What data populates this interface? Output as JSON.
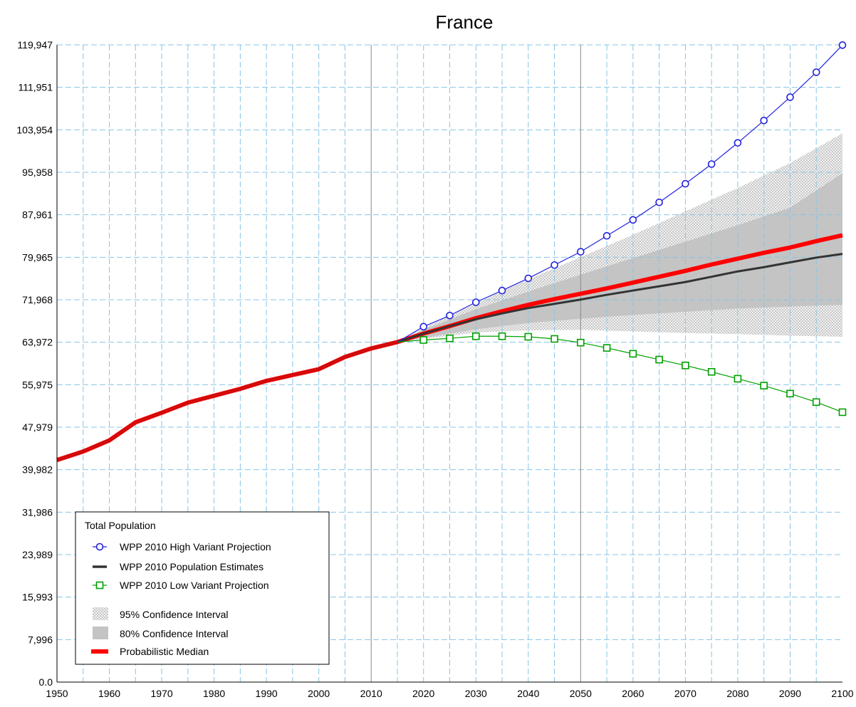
{
  "chart_data": {
    "type": "line",
    "title": "France",
    "xlabel": "",
    "ylabel": "",
    "xlim": [
      1950,
      2100
    ],
    "ylim": [
      0,
      119947
    ],
    "x_ticks": [
      1950,
      1960,
      1970,
      1980,
      1990,
      2000,
      2010,
      2020,
      2030,
      2040,
      2050,
      2060,
      2070,
      2080,
      2090,
      2100
    ],
    "x_tick_labels": [
      "1950",
      "1960",
      "1970",
      "1980",
      "1990",
      "2000",
      "2010",
      "2020",
      "2030",
      "2040",
      "2050",
      "2060",
      "2070",
      "2080",
      "2090",
      "2100"
    ],
    "y_ticks": [
      0,
      7996,
      15993,
      23989,
      31986,
      39982,
      47979,
      55975,
      63972,
      71968,
      79965,
      87961,
      95958,
      103954,
      111951,
      119947
    ],
    "y_tick_labels": [
      "0.0",
      "7,996",
      "15,993",
      "23,989",
      "31,986",
      "39,982",
      "47,979",
      "55,975",
      "63,972",
      "71,968",
      "79,965",
      "87,961",
      "95,958",
      "103,954",
      "111,951",
      "119,947"
    ],
    "grid": true,
    "reference_lines_x": [
      2010,
      2050
    ],
    "legend": {
      "title": "Total Population",
      "placement": "bottom-left",
      "entries": [
        {
          "key": "high",
          "label": "WPP 2010 High Variant Projection"
        },
        {
          "key": "estimates",
          "label": "WPP 2010 Population Estimates"
        },
        {
          "key": "low",
          "label": "WPP 2010 Low Variant Projection"
        },
        {
          "key": "ci95",
          "label": "95% Confidence Interval"
        },
        {
          "key": "ci80",
          "label": "80% Confidence Interval"
        },
        {
          "key": "median",
          "label": "Probabilistic Median"
        }
      ]
    },
    "colors": {
      "high": "#2222dd",
      "estimates": "#333333",
      "low": "#00a000",
      "median": "#ff0000",
      "ci95": "#d8d8d8",
      "ci80": "#c4c4c4",
      "grid": "#88c4e4",
      "reference": "#888888"
    },
    "series": [
      {
        "key": "median",
        "name": "Probabilistic Median",
        "x": [
          1950,
          1955,
          1960,
          1965,
          1970,
          1975,
          1980,
          1985,
          1990,
          1995,
          2000,
          2005,
          2010,
          2015,
          2020,
          2025,
          2030,
          2035,
          2040,
          2045,
          2050,
          2055,
          2060,
          2065,
          2070,
          2075,
          2080,
          2085,
          2090,
          2095,
          2100
        ],
        "values": [
          41800,
          43400,
          45500,
          48900,
          50700,
          52600,
          53900,
          55200,
          56700,
          57800,
          58900,
          61200,
          62800,
          64000,
          65600,
          67000,
          68500,
          69800,
          71000,
          72100,
          73100,
          74100,
          75200,
          76300,
          77400,
          78600,
          79700,
          80800,
          81800,
          83000,
          84100
        ]
      },
      {
        "key": "estimates",
        "name": "WPP 2010 Population Estimates",
        "x": [
          1950,
          1955,
          1960,
          1965,
          1970,
          1975,
          1980,
          1985,
          1990,
          1995,
          2000,
          2005,
          2010,
          2015,
          2020,
          2025,
          2030,
          2035,
          2040,
          2045,
          2050,
          2055,
          2060,
          2065,
          2070,
          2075,
          2080,
          2085,
          2090,
          2095,
          2100
        ],
        "values": [
          41800,
          43400,
          45500,
          48900,
          50700,
          52600,
          53900,
          55200,
          56700,
          57800,
          58900,
          61200,
          62800,
          64000,
          65600,
          67000,
          68300,
          69400,
          70400,
          71200,
          72000,
          72900,
          73700,
          74500,
          75300,
          76300,
          77300,
          78100,
          79000,
          79900,
          80600
        ]
      },
      {
        "key": "high",
        "name": "WPP 2010 High Variant Projection",
        "x": [
          2020,
          2025,
          2030,
          2035,
          2040,
          2045,
          2050,
          2055,
          2060,
          2065,
          2070,
          2075,
          2080,
          2085,
          2090,
          2095,
          2100
        ],
        "values": [
          66900,
          69000,
          71500,
          73700,
          76000,
          78500,
          81000,
          84000,
          87000,
          90300,
          93800,
          97500,
          101500,
          105700,
          110100,
          114800,
          119900
        ]
      },
      {
        "key": "low",
        "name": "WPP 2010 Low Variant Projection",
        "x": [
          2020,
          2025,
          2030,
          2035,
          2040,
          2045,
          2050,
          2055,
          2060,
          2065,
          2070,
          2075,
          2080,
          2085,
          2090,
          2095,
          2100
        ],
        "values": [
          64400,
          64700,
          65100,
          65100,
          65000,
          64600,
          63900,
          62900,
          61800,
          60700,
          59600,
          58400,
          57100,
          55800,
          54300,
          52700,
          50800
        ]
      }
    ],
    "bands": [
      {
        "key": "ci95",
        "name": "95% Confidence Interval",
        "x": [
          2015,
          2020,
          2030,
          2040,
          2050,
          2060,
          2070,
          2080,
          2090,
          2100
        ],
        "lower": [
          64000,
          64600,
          65800,
          66200,
          66300,
          66000,
          65700,
          65500,
          65200,
          65000
        ],
        "upper": [
          64000,
          66600,
          71300,
          75800,
          80000,
          84200,
          88600,
          93000,
          97700,
          103300
        ]
      },
      {
        "key": "ci80",
        "name": "80% Confidence Interval",
        "x": [
          2015,
          2020,
          2030,
          2040,
          2050,
          2060,
          2070,
          2080,
          2090,
          2100
        ],
        "lower": [
          64000,
          64800,
          66400,
          67600,
          68400,
          69100,
          69700,
          70300,
          70700,
          71000
        ],
        "upper": [
          64000,
          66300,
          70200,
          73500,
          76700,
          79800,
          82900,
          86000,
          89300,
          95800
        ]
      }
    ]
  }
}
